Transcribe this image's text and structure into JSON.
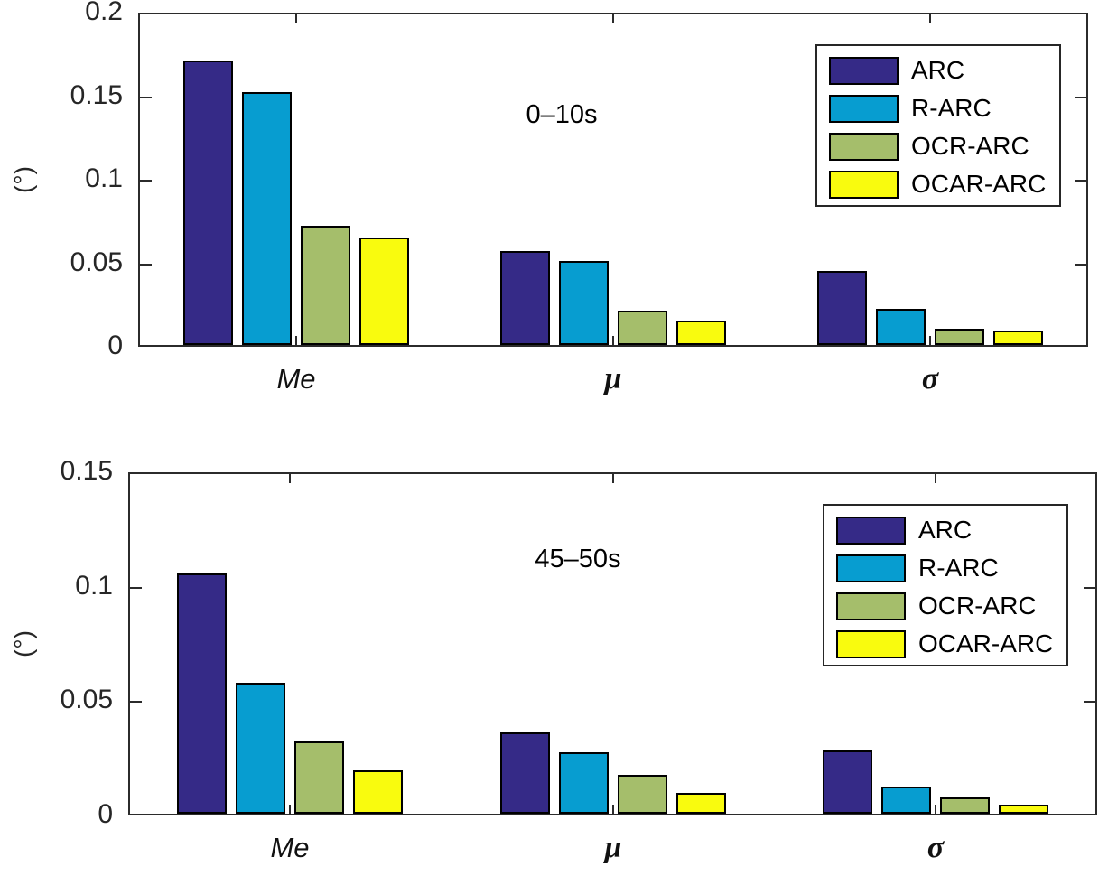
{
  "figure": {
    "background": "#ffffff",
    "axis_color": "#2b2b2b",
    "bar_edge_color": "#000000",
    "y_unit": "(°)"
  },
  "chart_data": [
    {
      "type": "bar",
      "title": "0–10s",
      "ylabel": "(°)",
      "xlabel": "",
      "categories": [
        "Me",
        "μ",
        "σ"
      ],
      "series": [
        {
          "name": "ARC",
          "color": "#352A87",
          "values": [
            0.172,
            0.057,
            0.045
          ]
        },
        {
          "name": "R-ARC",
          "color": "#079DD0",
          "values": [
            0.153,
            0.051,
            0.022
          ]
        },
        {
          "name": "OCR-ARC",
          "color": "#A5BE6B",
          "values": [
            0.072,
            0.021,
            0.01
          ]
        },
        {
          "name": "OCAR-ARC",
          "color": "#F9FB0E",
          "values": [
            0.065,
            0.015,
            0.009
          ]
        }
      ],
      "ylim": [
        0,
        0.2
      ],
      "yticks": [
        0,
        0.05,
        0.1,
        0.15,
        0.2
      ],
      "grid": false,
      "legend_position": "upper right"
    },
    {
      "type": "bar",
      "title": "45–50s",
      "ylabel": "(°)",
      "xlabel": "",
      "categories": [
        "Me",
        "μ",
        "σ"
      ],
      "series": [
        {
          "name": "ARC",
          "color": "#352A87",
          "values": [
            0.106,
            0.036,
            0.028
          ]
        },
        {
          "name": "R-ARC",
          "color": "#079DD0",
          "values": [
            0.058,
            0.027,
            0.012
          ]
        },
        {
          "name": "OCR-ARC",
          "color": "#A5BE6B",
          "values": [
            0.032,
            0.017,
            0.007
          ]
        },
        {
          "name": "OCAR-ARC",
          "color": "#F9FB0E",
          "values": [
            0.019,
            0.009,
            0.004
          ]
        }
      ],
      "ylim": [
        0,
        0.15
      ],
      "yticks": [
        0,
        0.05,
        0.1,
        0.15
      ],
      "grid": false,
      "legend_position": "upper right"
    }
  ]
}
